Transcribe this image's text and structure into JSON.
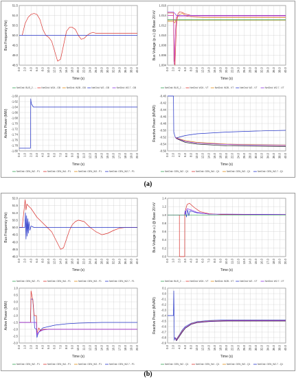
{
  "figure": {
    "labels": [
      "(a)",
      "(b)"
    ]
  },
  "colors": {
    "red": "#d9302c",
    "blue": "#2030c8",
    "green": "#2fa050",
    "orange": "#e08a10",
    "purple": "#8a2be2",
    "olive": "#8a8a20",
    "black": "#202020",
    "magenta": "#c02cb0"
  },
  "chart_data": [
    {
      "panel": "a",
      "type": "line",
      "xlabel": "Time (s)",
      "ylabel": "Bus Frequency (Hz)",
      "xlim": [
        0,
        40
      ],
      "ylim": [
        48.5,
        51.5
      ],
      "xticks": [
        "0.0",
        "2.0",
        "4.0",
        "6.0",
        "8.0",
        "10.0",
        "12.0",
        "14.0",
        "16.0",
        "18.0",
        "20.0",
        "22.0",
        "24.0",
        "26.0",
        "28.0",
        "30.0",
        "32.0",
        "34.0",
        "36.0",
        "38.0",
        "40.0"
      ],
      "yticks": [
        "48.5",
        "49.0",
        "49.5",
        "50.0",
        "50.5",
        "51.0",
        "51.5"
      ],
      "legend": [
        "NetGrid: BUS_2 - ...",
        "NetGrid: W24 - GB",
        "NetGrid: W2B - GB",
        "NetGrid: W2 - GB",
        "NetGrid: W2.7 - GB"
      ],
      "series": [
        {
          "color": "red",
          "x": [
            1,
            2,
            3,
            4,
            5,
            6,
            7,
            8,
            9,
            10,
            11,
            12,
            13,
            14,
            15,
            16,
            17,
            18,
            19,
            20,
            21,
            22,
            23,
            24,
            25,
            26,
            28,
            30,
            34,
            40
          ],
          "y": [
            50.0,
            50.6,
            50.9,
            51.05,
            51.1,
            51.05,
            50.8,
            50.3,
            50.0,
            49.9,
            49.7,
            49.2,
            48.7,
            48.8,
            49.5,
            50.2,
            50.4,
            50.4,
            50.3,
            50.0,
            49.8,
            49.85,
            50.0,
            50.1,
            50.15,
            50.1,
            50.1,
            50.1,
            50.1,
            50.1
          ]
        },
        {
          "color": "blue",
          "x": [
            0,
            40
          ],
          "y": [
            50.0,
            50.0
          ]
        }
      ]
    },
    {
      "panel": "a",
      "type": "line",
      "xlabel": "Time (s)",
      "ylabel": "Bus Voltage (p.u.) @ Base 20 kV",
      "xlim": [
        0,
        40
      ],
      "ylim": [
        1.004,
        1.016
      ],
      "xticks": [
        "0.0",
        "2.0",
        "4.0",
        "6.0",
        "8.0",
        "10.0",
        "12.0",
        "14.0",
        "16.0",
        "18.0",
        "20.0",
        "22.0",
        "24.0",
        "26.0",
        "28.0",
        "30.0",
        "32.0",
        "34.0",
        "36.0",
        "38.0",
        "40.0"
      ],
      "yticks": [
        "1.004",
        "1.006",
        "1.008",
        "1.010",
        "1.012",
        "1.014",
        "1.016"
      ],
      "legend": [
        "NetGrid: BUS_2 - ...",
        "NetGrid: W24 - VT",
        "NetGrid: W2B - VT",
        "NetGrid: W2 - VT",
        "NetGrid: W2.7 - VT"
      ],
      "series": [
        {
          "color": "green",
          "x": [
            0,
            40
          ],
          "y": [
            1.0132,
            1.0132
          ]
        },
        {
          "color": "orange",
          "x": [
            0,
            2,
            2.5,
            3,
            4,
            5,
            6,
            8,
            12,
            40
          ],
          "y": [
            1.0128,
            1.0128,
            1.0125,
            1.0134,
            1.0142,
            1.0144,
            1.014,
            1.0137,
            1.0136,
            1.0136
          ]
        },
        {
          "color": "red",
          "x": [
            0,
            2,
            2.2,
            2.5,
            3,
            3.5,
            4,
            5,
            6,
            8,
            12,
            40
          ],
          "y": [
            1.0145,
            1.0145,
            1.0048,
            1.004,
            1.012,
            1.0143,
            1.0147,
            1.0146,
            1.0143,
            1.014,
            1.014,
            1.014
          ]
        },
        {
          "color": "purple",
          "x": [
            0,
            2,
            3,
            40
          ],
          "y": [
            1.0147,
            1.0147,
            1.014,
            1.014
          ]
        },
        {
          "color": "magenta",
          "x": [
            0,
            2,
            2.3,
            2.6,
            3,
            40
          ],
          "y": [
            1.014,
            1.014,
            1.0042,
            1.01,
            1.0138,
            1.0138
          ]
        },
        {
          "color": "olive",
          "x": [
            0,
            40
          ],
          "y": [
            1.013,
            1.013
          ]
        }
      ]
    },
    {
      "panel": "a",
      "type": "line",
      "xlabel": "Time (s)",
      "ylabel": "Active Power (MW)",
      "xlim": [
        0,
        20
      ],
      "ylim": [
        -1.8,
        -1.6
      ],
      "xticks": [
        "0.0",
        "1.0",
        "2.0",
        "3.0",
        "4.0",
        "5.0",
        "6.0",
        "7.0",
        "8.0",
        "9.0",
        "10.0",
        "11.0",
        "12.0",
        "13.0",
        "14.0",
        "15.0",
        "16.0",
        "17.0",
        "18.0",
        "19.0",
        "20.0"
      ],
      "yticks": [
        "-1.80",
        "-1.78",
        "-1.76",
        "-1.74",
        "-1.72",
        "-1.70",
        "-1.68",
        "-1.66",
        "-1.64",
        "-1.62",
        "-1.60"
      ],
      "legend": [
        "NetGrid: GEN_W2 - P1",
        "NetGrid: GEN_W4 - P1",
        "NetGrid: GEN_W3 - P1",
        "NetGrid: GEN_W2.7 - P1"
      ],
      "series": [
        {
          "color": "blue",
          "x": [
            0,
            1.9,
            1.95,
            2.0,
            2.1,
            2.4,
            3,
            20
          ],
          "y": [
            -1.79,
            -1.79,
            -1.61,
            -1.62,
            -1.63,
            -1.64,
            -1.64,
            -1.64
          ]
        }
      ]
    },
    {
      "panel": "a",
      "type": "line",
      "xlabel": "Time (s)",
      "ylabel": "Reactive Power (MVAR)",
      "xlim": [
        0,
        40
      ],
      "ylim": [
        -0.56,
        -0.4
      ],
      "xticks": [
        "0.0",
        "2.0",
        "4.0",
        "6.0",
        "8.0",
        "10.0",
        "12.0",
        "14.0",
        "16.0",
        "18.0",
        "20.0",
        "22.0",
        "24.0",
        "26.0",
        "28.0",
        "30.0",
        "32.0",
        "34.0",
        "36.0",
        "38.0",
        "40.0"
      ],
      "yticks": [
        "-0.56",
        "-0.54",
        "-0.52",
        "-0.50",
        "-0.48",
        "-0.46",
        "-0.44",
        "-0.42",
        "-0.40"
      ],
      "legend": [
        "NetGrid: GEN_W2 - Q1",
        "NetGrid: GEN_W4 - Q1",
        "NetGrid: GEN_W3 - Q1",
        "NetGrid: GEN_W2.7 - Q1"
      ],
      "series": [
        {
          "color": "blue",
          "x": [
            0,
            2,
            2.1,
            2.6,
            3,
            6,
            10,
            20,
            30,
            40
          ],
          "y": [
            -0.4,
            -0.4,
            -0.505,
            -0.52,
            -0.522,
            -0.515,
            -0.51,
            -0.505,
            -0.502,
            -0.5
          ]
        },
        {
          "color": "orange",
          "x": [
            2.6,
            3,
            6,
            10,
            20,
            30,
            40
          ],
          "y": [
            -0.52,
            -0.522,
            -0.53,
            -0.535,
            -0.54,
            -0.542,
            -0.543
          ]
        },
        {
          "color": "black",
          "x": [
            2.6,
            3,
            6,
            10,
            20,
            30,
            40
          ],
          "y": [
            -0.52,
            -0.524,
            -0.535,
            -0.54,
            -0.545,
            -0.546,
            -0.547
          ]
        },
        {
          "color": "purple",
          "x": [
            2.6,
            3,
            6,
            10,
            20,
            30,
            40
          ],
          "y": [
            -0.52,
            -0.523,
            -0.532,
            -0.537,
            -0.541,
            -0.543,
            -0.544
          ]
        }
      ]
    },
    {
      "panel": "b",
      "type": "line",
      "xlabel": "Time (s)",
      "ylabel": "Bus Frequency (Hz)",
      "xlim": [
        0,
        40
      ],
      "ylim": [
        48.0,
        52.0
      ],
      "xticks": [
        "0.0",
        "2.0",
        "4.0",
        "6.0",
        "8.0",
        "10.0",
        "12.0",
        "14.0",
        "16.0",
        "18.0",
        "20.0",
        "22.0",
        "24.0",
        "26.0",
        "28.0",
        "30.0",
        "32.0",
        "34.0",
        "36.0",
        "38.0",
        "40.0"
      ],
      "yticks": [
        "48.0",
        "48.5",
        "49.0",
        "49.5",
        "50.0",
        "50.5",
        "51.0",
        "51.5",
        "52.0"
      ],
      "legend": [
        "NetGrid: GEN_W2 - F1",
        "NetGrid: GEN_W4 - F1",
        "NetGrid: GEN_W3 - F1",
        "NetGrid: GEN_W2.7 - F1"
      ],
      "series": [
        {
          "color": "red",
          "x": [
            0,
            1,
            2,
            2.3,
            2.6,
            3,
            4,
            5,
            6,
            7,
            8,
            9,
            10,
            11,
            12,
            13,
            14,
            15,
            16,
            17,
            18,
            19,
            20,
            22,
            24,
            26,
            28,
            30,
            32,
            34,
            36,
            40
          ],
          "y": [
            50.0,
            50.0,
            51.9,
            51.2,
            51.6,
            51.5,
            51.3,
            51.0,
            50.7,
            50.5,
            50.3,
            50.1,
            49.9,
            49.7,
            49.3,
            48.9,
            48.5,
            48.6,
            49.2,
            49.8,
            50.2,
            50.4,
            50.5,
            50.4,
            50.0,
            49.7,
            49.5,
            49.6,
            49.8,
            49.95,
            50.0,
            50.0
          ]
        },
        {
          "color": "blue",
          "x": [
            0,
            1.9,
            2.1,
            2.3,
            2.5,
            2.7,
            2.9,
            3.1,
            3.3,
            3.6,
            4,
            5,
            40
          ],
          "y": [
            50.0,
            50.0,
            51.0,
            49.2,
            50.8,
            49.4,
            50.6,
            49.6,
            50.4,
            49.8,
            50.1,
            50.0,
            50.0
          ]
        }
      ]
    },
    {
      "panel": "b",
      "type": "line",
      "xlabel": "Time (s)",
      "ylabel": "Bus Voltage (p.u.) @ Base 20 kV",
      "xlim": [
        0,
        20
      ],
      "ylim": [
        0.0,
        1.4
      ],
      "xticks": [
        "0.0",
        "1.0",
        "2.0",
        "3.0",
        "4.0",
        "5.0",
        "6.0",
        "7.0",
        "8.0",
        "9.0",
        "10.0",
        "11.0",
        "12.0",
        "13.0",
        "14.0",
        "15.0",
        "16.0",
        "17.0",
        "18.0",
        "19.0",
        "20.0"
      ],
      "yticks": [
        "0.0",
        "0.2",
        "0.4",
        "0.6",
        "0.8",
        "1.0",
        "1.2",
        "1.4"
      ],
      "legend": [
        "NetGrid: BUS_2 - ...",
        "NetGrid: W24 - VT",
        "NetGrid: W2B - VT",
        "NetGrid: W2 - VT",
        "NetGrid: W2.7 - VT"
      ],
      "series": [
        {
          "color": "red",
          "x": [
            0,
            2,
            2.01,
            2.9,
            2.91,
            3.3,
            3.7,
            4.5,
            5.5,
            7,
            9,
            20
          ],
          "y": [
            1.0,
            1.0,
            0.0,
            0.0,
            1.05,
            1.25,
            1.28,
            1.18,
            1.08,
            1.03,
            1.01,
            1.01
          ]
        },
        {
          "color": "blue",
          "x": [
            0,
            2.9,
            3.0,
            3.2,
            3.4,
            3.6,
            3.8,
            4.2,
            5,
            7,
            20
          ],
          "y": [
            1.0,
            1.0,
            1.1,
            0.95,
            1.12,
            0.98,
            1.1,
            1.08,
            1.05,
            1.02,
            1.01
          ]
        },
        {
          "color": "purple",
          "x": [
            0,
            2.9,
            3.3,
            4,
            5,
            7,
            20
          ],
          "y": [
            1.0,
            1.0,
            1.15,
            1.12,
            1.06,
            1.02,
            1.01
          ]
        },
        {
          "color": "green",
          "x": [
            0,
            20
          ],
          "y": [
            1.0,
            1.0
          ]
        }
      ]
    },
    {
      "panel": "b",
      "type": "line",
      "xlabel": "Time (s)",
      "ylabel": "Active Power (MW)",
      "xlim": [
        0,
        20
      ],
      "ylim": [
        -3.0,
        1.0
      ],
      "xticks": [
        "0.0",
        "1.0",
        "2.0",
        "3.0",
        "4.0",
        "5.0",
        "6.0",
        "7.0",
        "8.0",
        "9.0",
        "10.0",
        "11.0",
        "12.0",
        "13.0",
        "14.0",
        "15.0",
        "16.0",
        "17.0",
        "18.0",
        "19.0",
        "20.0"
      ],
      "yticks": [
        "-3.0",
        "-2.5",
        "-2.0",
        "-1.5",
        "-1.0",
        "-0.5",
        "0.0",
        "0.5",
        "1.0"
      ],
      "legend": [
        "NetGrid: GEN_W2 - P1",
        "NetGrid: GEN_W4 - P1",
        "NetGrid: GEN_W3 - P1",
        "NetGrid: GEN_W2.7 - P1"
      ],
      "series": [
        {
          "color": "blue",
          "x": [
            0,
            1.9,
            2.0,
            2.3,
            2.5,
            2.6,
            2.9,
            3.0,
            3.2,
            3.5,
            4,
            6,
            8,
            10,
            14,
            20
          ],
          "y": [
            -1.5,
            -1.5,
            0.2,
            0.2,
            -0.9,
            -1.9,
            -2.0,
            -2.6,
            -2.3,
            -2.1,
            -1.9,
            -1.7,
            -1.6,
            -1.55,
            -1.5,
            -1.5
          ]
        },
        {
          "color": "red",
          "x": [
            0,
            1.9,
            2.0,
            2.3,
            2.5,
            2.9,
            3.0,
            3.3,
            3.6,
            4,
            5,
            20
          ],
          "y": [
            -1.5,
            -1.5,
            0.8,
            0.1,
            -1.0,
            -1.0,
            -2.3,
            -1.9,
            -2.1,
            -2.0,
            -2.0,
            -2.0
          ]
        },
        {
          "color": "purple",
          "x": [
            0,
            2.9,
            3.0,
            3.3,
            4,
            5,
            20
          ],
          "y": [
            -1.5,
            -1.5,
            -2.4,
            -2.2,
            -2.05,
            -2.0,
            -2.0
          ]
        }
      ]
    },
    {
      "panel": "b",
      "type": "line",
      "xlabel": "Time (s)",
      "ylabel": "Reactive Power (MVAR)",
      "xlim": [
        0,
        40
      ],
      "ylim": [
        -0.9,
        0.1
      ],
      "xticks": [
        "0.0",
        "2.0",
        "4.0",
        "6.0",
        "8.0",
        "10.0",
        "12.0",
        "14.0",
        "16.0",
        "18.0",
        "20.0",
        "22.0",
        "24.0",
        "26.0",
        "28.0",
        "30.0",
        "32.0",
        "34.0",
        "36.0",
        "38.0",
        "40.0"
      ],
      "yticks": [
        "-0.9",
        "-0.8",
        "-0.7",
        "-0.6",
        "-0.5",
        "-0.4",
        "-0.3",
        "-0.2",
        "-0.1",
        "0.0",
        "0.1"
      ],
      "legend": [
        "NetGrid: GEN_W2 - Q1",
        "NetGrid: GEN_W4 - Q1",
        "NetGrid: GEN_W3 - Q1",
        "NetGrid: GEN_W2.7 - Q1"
      ],
      "series": [
        {
          "color": "blue",
          "x": [
            0,
            2.0,
            2.1,
            2.3,
            2.5,
            3,
            4,
            5,
            6,
            8,
            10,
            14,
            20,
            30,
            40
          ],
          "y": [
            -0.4,
            -0.4,
            0.05,
            -0.85,
            -0.8,
            -0.83,
            -0.75,
            -0.66,
            -0.6,
            -0.54,
            -0.51,
            -0.49,
            -0.48,
            -0.48,
            -0.48
          ]
        },
        {
          "color": "orange",
          "x": [
            2.5,
            3,
            4,
            5,
            6,
            8,
            10,
            14,
            20,
            30,
            40
          ],
          "y": [
            -0.8,
            -0.84,
            -0.76,
            -0.68,
            -0.62,
            -0.55,
            -0.52,
            -0.5,
            -0.49,
            -0.49,
            -0.49
          ]
        },
        {
          "color": "black",
          "x": [
            2.5,
            3,
            4,
            5,
            6,
            8,
            10,
            14,
            20,
            30,
            40
          ],
          "y": [
            -0.8,
            -0.86,
            -0.78,
            -0.7,
            -0.63,
            -0.56,
            -0.53,
            -0.51,
            -0.5,
            -0.5,
            -0.5
          ]
        },
        {
          "color": "purple",
          "x": [
            2.5,
            3,
            4,
            5,
            6,
            8,
            10,
            14,
            20,
            30,
            40
          ],
          "y": [
            -0.8,
            -0.85,
            -0.77,
            -0.69,
            -0.62,
            -0.555,
            -0.525,
            -0.505,
            -0.495,
            -0.495,
            -0.495
          ]
        }
      ]
    }
  ]
}
